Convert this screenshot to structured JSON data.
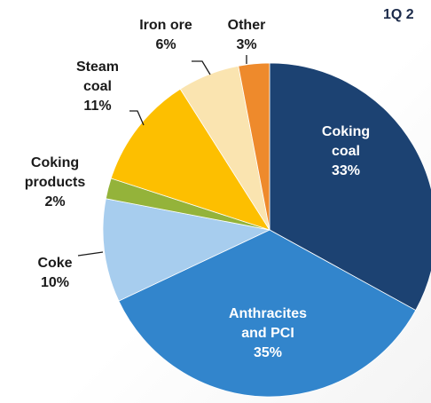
{
  "corner_title": "1Q 2",
  "chart_data": {
    "type": "pie",
    "title": "",
    "slices": [
      {
        "label": "Coking coal",
        "display": [
          "Coking",
          "coal",
          "33%"
        ],
        "value": 33,
        "color": "#1c4272"
      },
      {
        "label": "Anthracites and PCI",
        "display": [
          "Anthracites",
          "and PCI",
          "35%"
        ],
        "value": 35,
        "color": "#3285cc"
      },
      {
        "label": "Coke",
        "display": [
          "Coke",
          "10%"
        ],
        "value": 10,
        "color": "#a7cdee"
      },
      {
        "label": "Coking products",
        "display": [
          "Coking",
          "products",
          "2%"
        ],
        "value": 2,
        "color": "#94b33a"
      },
      {
        "label": "Steam coal",
        "display": [
          "Steam",
          "coal",
          "11%"
        ],
        "value": 11,
        "color": "#fdbf00"
      },
      {
        "label": "Iron ore",
        "display": [
          "Iron ore",
          "6%"
        ],
        "value": 6,
        "color": "#fae4b0"
      },
      {
        "label": "Other",
        "display": [
          "Other",
          "3%"
        ],
        "value": 3,
        "color": "#ee8a2c"
      }
    ],
    "start_angle": "12 o'clock",
    "direction": "clockwise",
    "legend": "none"
  }
}
